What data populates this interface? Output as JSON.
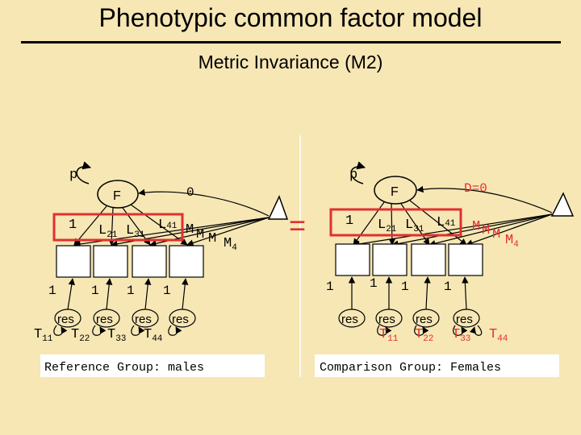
{
  "title": "Phenotypic common factor model",
  "subtitle": "Metric Invariance (M2)",
  "equals_sign": "=",
  "left_model": {
    "caption": "Reference Group: males",
    "factor_variance_label": "p",
    "factor_label": "F",
    "mean_label": "0",
    "first_loading": "1",
    "loadings": [
      {
        "base": "L",
        "sub": "21"
      },
      {
        "base": "L",
        "sub": "31"
      },
      {
        "base": "L",
        "sub": "41"
      }
    ],
    "means": [
      {
        "base": "M",
        "sub": ""
      },
      {
        "base": "M",
        "sub": ""
      },
      {
        "base": "M",
        "sub": ""
      },
      {
        "base": "M",
        "sub": "4"
      }
    ],
    "residual_paths": [
      "1",
      "1",
      "1",
      "1"
    ],
    "residual_label": "res",
    "residual_variances": [
      {
        "base": "T",
        "sub": "11"
      },
      {
        "base": "T",
        "sub": "22"
      },
      {
        "base": "T",
        "sub": "33"
      },
      {
        "base": "T",
        "sub": "44"
      }
    ]
  },
  "right_model": {
    "caption": "Comparison Group: Females",
    "factor_variance_label": "p",
    "factor_label": "F",
    "mean_label": "D=0",
    "first_loading": "1",
    "loadings": [
      {
        "base": "L",
        "sub": "21"
      },
      {
        "base": "L",
        "sub": "31"
      },
      {
        "base": "L",
        "sub": "41"
      }
    ],
    "means": [
      {
        "base": "M",
        "sub": ""
      },
      {
        "base": "M",
        "sub": ""
      },
      {
        "base": "M",
        "sub": ""
      },
      {
        "base": "M",
        "sub": "4"
      }
    ],
    "residual_paths": [
      "1",
      "1",
      "1",
      "1"
    ],
    "residual_label": "res",
    "residual_variances": [
      {
        "base": "T",
        "sub": "11"
      },
      {
        "base": "T",
        "sub": "22"
      },
      {
        "base": "T",
        "sub": "33"
      },
      {
        "base": "T",
        "sub": "44"
      }
    ]
  },
  "colors": {
    "background": "#f6e7b5",
    "highlight": "#e03030",
    "ink": "#000000",
    "box_fill": "#ffffff"
  }
}
